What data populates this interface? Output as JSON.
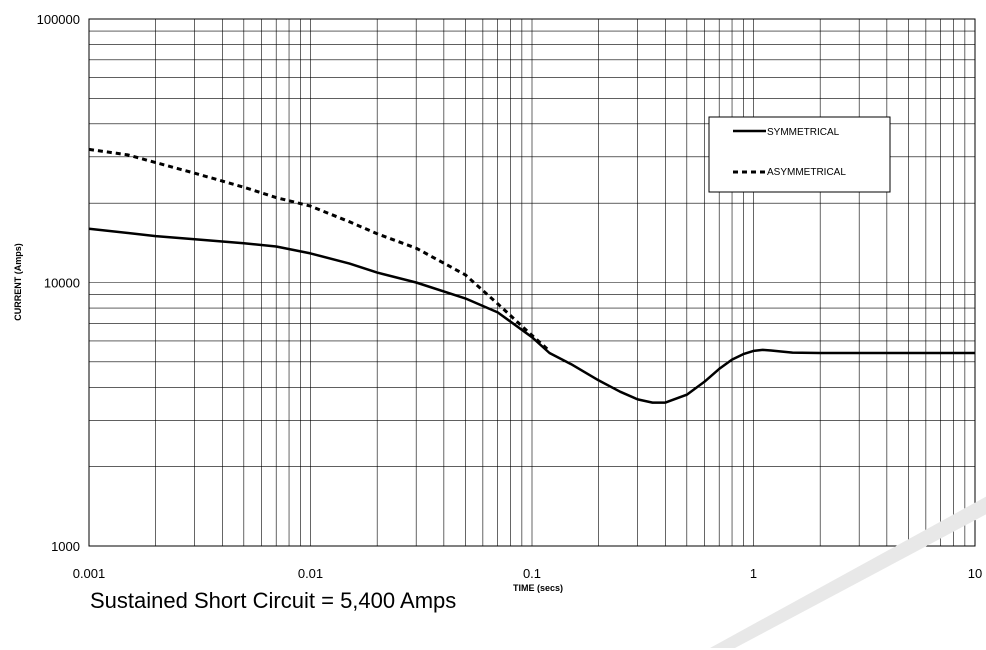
{
  "chart_data": {
    "type": "line",
    "xscale": "log",
    "yscale": "log",
    "xlim": [
      0.001,
      10
    ],
    "ylim": [
      1000,
      100000
    ],
    "xlabel": "TIME (secs)",
    "ylabel": "CURRENT (Amps)",
    "x_ticks": [
      "0.001",
      "0.01",
      "0.1",
      "1",
      "10"
    ],
    "y_ticks": [
      "1000",
      "10000",
      "100000"
    ],
    "grid": true,
    "legend_position": "top-right",
    "series": [
      {
        "name": "SYMMETRICAL",
        "style": "solid",
        "color": "#000000",
        "points": [
          [
            0.001,
            16000
          ],
          [
            0.002,
            15000
          ],
          [
            0.003,
            14600
          ],
          [
            0.005,
            14100
          ],
          [
            0.007,
            13700
          ],
          [
            0.01,
            12900
          ],
          [
            0.015,
            11800
          ],
          [
            0.02,
            10900
          ],
          [
            0.03,
            10000
          ],
          [
            0.05,
            8700
          ],
          [
            0.07,
            7700
          ],
          [
            0.1,
            6200
          ],
          [
            0.12,
            5400
          ],
          [
            0.15,
            4900
          ],
          [
            0.2,
            4250
          ],
          [
            0.25,
            3850
          ],
          [
            0.3,
            3600
          ],
          [
            0.35,
            3500
          ],
          [
            0.4,
            3500
          ],
          [
            0.5,
            3750
          ],
          [
            0.6,
            4200
          ],
          [
            0.7,
            4700
          ],
          [
            0.8,
            5100
          ],
          [
            0.9,
            5350
          ],
          [
            1.0,
            5500
          ],
          [
            1.1,
            5550
          ],
          [
            1.2,
            5520
          ],
          [
            1.5,
            5420
          ],
          [
            2,
            5400
          ],
          [
            5,
            5400
          ],
          [
            10,
            5400
          ]
        ]
      },
      {
        "name": "ASYMMETRICAL",
        "style": "dashed",
        "color": "#000000",
        "points": [
          [
            0.001,
            32000
          ],
          [
            0.0015,
            30500
          ],
          [
            0.002,
            28500
          ],
          [
            0.003,
            26000
          ],
          [
            0.005,
            23000
          ],
          [
            0.007,
            21000
          ],
          [
            0.01,
            19500
          ],
          [
            0.015,
            17000
          ],
          [
            0.02,
            15300
          ],
          [
            0.03,
            13500
          ],
          [
            0.05,
            10700
          ],
          [
            0.07,
            8300
          ],
          [
            0.1,
            6300
          ],
          [
            0.12,
            5500
          ]
        ]
      }
    ]
  },
  "footnote": "Sustained Short Circuit = 5,400 Amps"
}
